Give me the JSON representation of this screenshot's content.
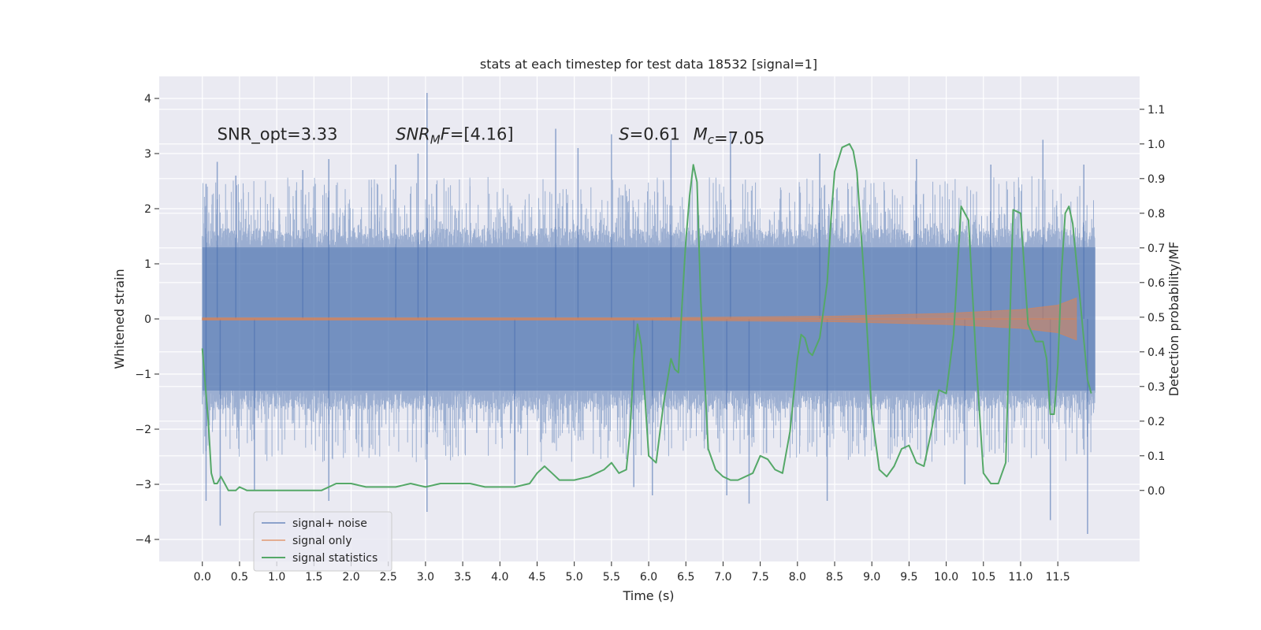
{
  "chart_data": {
    "type": "line",
    "title": "stats at each timestep for test data 18532 [signal=1]",
    "xlabel": "Time (s)",
    "ylabel": "Whitened strain",
    "y2label": "Detection probability/MF",
    "xlim": [
      -0.58,
      12.6
    ],
    "ylim": [
      -4.4,
      4.4
    ],
    "y2lim": [
      -0.205,
      1.195
    ],
    "grid": true,
    "legend_position": "lower-left",
    "x_ticks": [
      0.0,
      0.5,
      1.0,
      1.5,
      2.0,
      2.5,
      3.0,
      3.5,
      4.0,
      4.5,
      5.0,
      5.5,
      6.0,
      6.5,
      7.0,
      7.5,
      8.0,
      8.5,
      9.0,
      9.5,
      10.0,
      10.5,
      11.0,
      11.5
    ],
    "x_tick_labels": [
      "0.0",
      "0.5",
      "1.0",
      "1.5",
      "2.0",
      "2.5",
      "3.0",
      "3.5",
      "4.0",
      "4.5",
      "5.0",
      "5.5",
      "6.0",
      "6.5",
      "7.0",
      "7.5",
      "8.0",
      "8.5",
      "9.0",
      "9.5",
      "10.0",
      "10.5",
      "11.0",
      "11.5"
    ],
    "y_ticks": [
      4,
      3,
      2,
      1,
      0,
      -1,
      -2,
      -3,
      -4
    ],
    "y_tick_labels": [
      "4",
      "3",
      "2",
      "1",
      "0",
      "−1",
      "−2",
      "−3",
      "−4"
    ],
    "y2_ticks": [
      1.1,
      1.0,
      0.9,
      0.8,
      0.7,
      0.6,
      0.5,
      0.4,
      0.3,
      0.2,
      0.1,
      0.0
    ],
    "y2_tick_labels": [
      "1.1",
      "1.0",
      "0.9",
      "0.8",
      "0.7",
      "0.6",
      "0.5",
      "0.4",
      "0.3",
      "0.2",
      "0.1",
      "0.0"
    ],
    "annotations": [
      {
        "name": "snr-opt",
        "text": "SNR_opt=3.33",
        "x": 0.2,
        "y": 3.25
      },
      {
        "name": "snr-mf",
        "text": "SNR_MF=[4.16]",
        "x": 2.6,
        "y": 3.25
      },
      {
        "name": "s-value",
        "text": "S=0.61",
        "x": 5.6,
        "y": 3.25
      },
      {
        "name": "mc-value",
        "text": "M_c=7.05",
        "x": 6.6,
        "y": 3.25
      }
    ],
    "series": [
      {
        "name": "signal+ noise",
        "color": "#4c72b0",
        "kind": "noise",
        "x_range": [
          0.0,
          12.0
        ],
        "envelope_upper": 1.3,
        "envelope_lower": -1.3,
        "spikes": [
          {
            "x": 0.05,
            "y": 2.45
          },
          {
            "x": 0.2,
            "y": 2.85
          },
          {
            "x": 0.45,
            "y": 2.6
          },
          {
            "x": 1.35,
            "y": 2.7
          },
          {
            "x": 1.7,
            "y": 2.9
          },
          {
            "x": 2.6,
            "y": 2.8
          },
          {
            "x": 2.9,
            "y": 3.0
          },
          {
            "x": 3.02,
            "y": 4.1
          },
          {
            "x": 4.75,
            "y": 3.45
          },
          {
            "x": 5.05,
            "y": 3.1
          },
          {
            "x": 5.5,
            "y": 3.35
          },
          {
            "x": 6.3,
            "y": 3.25
          },
          {
            "x": 7.1,
            "y": 3.4
          },
          {
            "x": 8.3,
            "y": 3.0
          },
          {
            "x": 9.6,
            "y": 2.9
          },
          {
            "x": 10.6,
            "y": 2.8
          },
          {
            "x": 11.3,
            "y": 3.25
          },
          {
            "x": 11.85,
            "y": 2.8
          },
          {
            "x": 0.05,
            "y": -3.3
          },
          {
            "x": 0.24,
            "y": -3.75
          },
          {
            "x": 0.7,
            "y": -3.1
          },
          {
            "x": 1.7,
            "y": -3.3
          },
          {
            "x": 3.02,
            "y": -3.5
          },
          {
            "x": 4.2,
            "y": -3.0
          },
          {
            "x": 5.8,
            "y": -3.05
          },
          {
            "x": 6.05,
            "y": -3.2
          },
          {
            "x": 7.05,
            "y": -3.2
          },
          {
            "x": 7.35,
            "y": -3.35
          },
          {
            "x": 8.4,
            "y": -3.3
          },
          {
            "x": 10.25,
            "y": -3.0
          },
          {
            "x": 11.4,
            "y": -3.65
          },
          {
            "x": 11.9,
            "y": -3.9
          }
        ]
      },
      {
        "name": "signal only",
        "color": "#dd8452",
        "kind": "chirp",
        "x_range": [
          0.0,
          11.75
        ],
        "amplitude": [
          {
            "x": 0.0,
            "y": 0.02
          },
          {
            "x": 6.0,
            "y": 0.02
          },
          {
            "x": 8.5,
            "y": 0.05
          },
          {
            "x": 10.0,
            "y": 0.1
          },
          {
            "x": 11.0,
            "y": 0.17
          },
          {
            "x": 11.5,
            "y": 0.25
          },
          {
            "x": 11.75,
            "y": 0.38
          }
        ]
      },
      {
        "name": "signal statistics",
        "color": "#55a868",
        "kind": "line",
        "axis": "right",
        "x": [
          0.0,
          0.08,
          0.12,
          0.16,
          0.2,
          0.25,
          0.3,
          0.35,
          0.4,
          0.45,
          0.5,
          0.6,
          0.7,
          0.8,
          1.0,
          1.2,
          1.4,
          1.6,
          1.8,
          2.0,
          2.2,
          2.4,
          2.6,
          2.8,
          3.0,
          3.2,
          3.4,
          3.6,
          3.8,
          4.0,
          4.2,
          4.4,
          4.5,
          4.6,
          4.7,
          4.8,
          5.0,
          5.2,
          5.4,
          5.5,
          5.6,
          5.7,
          5.75,
          5.8,
          5.85,
          5.9,
          5.95,
          6.0,
          6.1,
          6.2,
          6.3,
          6.35,
          6.4,
          6.45,
          6.5,
          6.55,
          6.6,
          6.65,
          6.7,
          6.8,
          6.9,
          7.0,
          7.1,
          7.2,
          7.4,
          7.5,
          7.6,
          7.7,
          7.8,
          7.9,
          8.0,
          8.05,
          8.1,
          8.15,
          8.2,
          8.3,
          8.4,
          8.45,
          8.5,
          8.6,
          8.7,
          8.75,
          8.8,
          8.9,
          9.0,
          9.1,
          9.2,
          9.3,
          9.4,
          9.5,
          9.6,
          9.7,
          9.8,
          9.9,
          10.0,
          10.1,
          10.2,
          10.3,
          10.4,
          10.5,
          10.6,
          10.7,
          10.8,
          10.9,
          11.0,
          11.1,
          11.2,
          11.3,
          11.35,
          11.4,
          11.45,
          11.5,
          11.55,
          11.6,
          11.65,
          11.7,
          11.8,
          11.9,
          11.95
        ],
        "y": [
          0.41,
          0.2,
          0.05,
          0.02,
          0.02,
          0.04,
          0.02,
          0.0,
          0.0,
          0.0,
          0.01,
          0.0,
          0.0,
          0.0,
          0.0,
          0.0,
          0.0,
          0.0,
          0.02,
          0.02,
          0.01,
          0.01,
          0.01,
          0.02,
          0.01,
          0.02,
          0.02,
          0.02,
          0.01,
          0.01,
          0.01,
          0.02,
          0.05,
          0.07,
          0.05,
          0.03,
          0.03,
          0.04,
          0.06,
          0.08,
          0.05,
          0.06,
          0.17,
          0.38,
          0.48,
          0.42,
          0.27,
          0.1,
          0.08,
          0.25,
          0.38,
          0.35,
          0.34,
          0.54,
          0.72,
          0.85,
          0.94,
          0.89,
          0.55,
          0.12,
          0.06,
          0.04,
          0.03,
          0.03,
          0.05,
          0.1,
          0.09,
          0.06,
          0.05,
          0.17,
          0.38,
          0.45,
          0.44,
          0.4,
          0.39,
          0.44,
          0.6,
          0.78,
          0.92,
          0.99,
          1.0,
          0.98,
          0.92,
          0.6,
          0.22,
          0.06,
          0.04,
          0.07,
          0.12,
          0.13,
          0.08,
          0.07,
          0.17,
          0.29,
          0.28,
          0.45,
          0.82,
          0.78,
          0.38,
          0.05,
          0.02,
          0.02,
          0.08,
          0.81,
          0.8,
          0.48,
          0.43,
          0.43,
          0.38,
          0.22,
          0.22,
          0.36,
          0.63,
          0.8,
          0.82,
          0.77,
          0.55,
          0.32,
          0.28
        ]
      }
    ]
  }
}
